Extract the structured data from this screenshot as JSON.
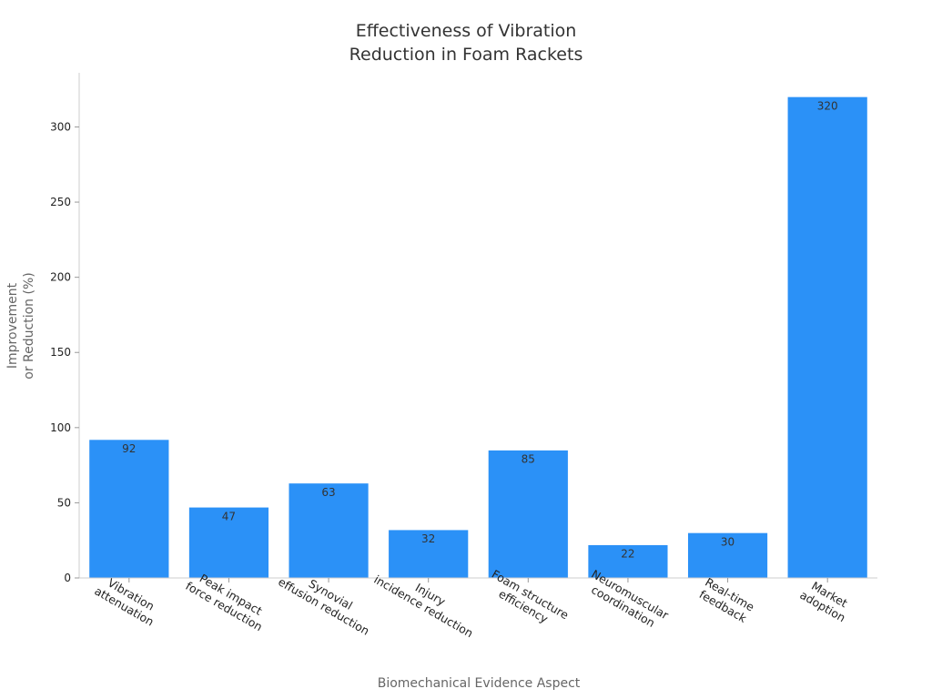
{
  "chart_data": {
    "type": "bar",
    "title": [
      "Effectiveness of Vibration",
      "Reduction in Foam Rackets"
    ],
    "xlabel": "Biomechanical Evidence Aspect",
    "ylabel": [
      "Improvement",
      "or Reduction (%)"
    ],
    "categories": [
      [
        "Vibration",
        "attenuation"
      ],
      [
        "Peak impact",
        "force reduction"
      ],
      [
        "Synovial",
        "effusion reduction"
      ],
      [
        "Injury",
        "incidence reduction"
      ],
      [
        "Foam structure",
        "efficiency"
      ],
      [
        "Neuromuscular",
        "coordination"
      ],
      [
        "Real-time",
        "feedback"
      ],
      [
        "Market",
        "adoption"
      ]
    ],
    "values": [
      92,
      47,
      63,
      32,
      85,
      22,
      30,
      320
    ],
    "ylim": [
      0,
      336
    ],
    "yticks": [
      0,
      50,
      100,
      150,
      200,
      250,
      300
    ],
    "grid": false,
    "legend": "none",
    "colors": {
      "bar": "#2b91f7",
      "axis": "#cccccc",
      "tick": "#999999"
    }
  }
}
